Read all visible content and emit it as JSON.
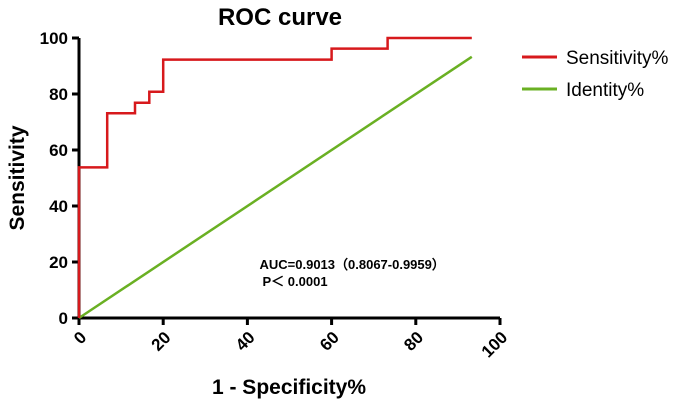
{
  "chart_data": {
    "type": "line",
    "title": "ROC curve",
    "xlabel": "1 - Specificity%",
    "ylabel": "Sensitivity",
    "xlim": [
      0,
      100
    ],
    "ylim": [
      0,
      100
    ],
    "xticks": [
      0,
      20,
      40,
      60,
      80,
      100
    ],
    "yticks": [
      0,
      20,
      40,
      60,
      80,
      100
    ],
    "grid": false,
    "legend_position": "right",
    "series": [
      {
        "name": "Sensitivity%",
        "color": "#d7191c",
        "x": [
          0,
          0,
          6.7,
          6.7,
          13.3,
          13.3,
          16.7,
          16.7,
          20,
          20,
          60,
          60,
          73.3,
          73.3,
          93.3
        ],
        "y": [
          0,
          53.8,
          53.8,
          73.1,
          73.1,
          76.9,
          76.9,
          80.8,
          80.8,
          92.3,
          92.3,
          96.2,
          96.2,
          100,
          100
        ]
      },
      {
        "name": "Identity%",
        "color": "#6ab023",
        "x": [
          0,
          93.3
        ],
        "y": [
          0,
          93.3
        ]
      }
    ],
    "annotations": [
      {
        "text": "AUC=0.9013（0.8067-0.9959）",
        "x": 50,
        "y": 17.5
      },
      {
        "text": "P＜ 0.0001",
        "x": 50,
        "y": 11.5
      }
    ]
  }
}
